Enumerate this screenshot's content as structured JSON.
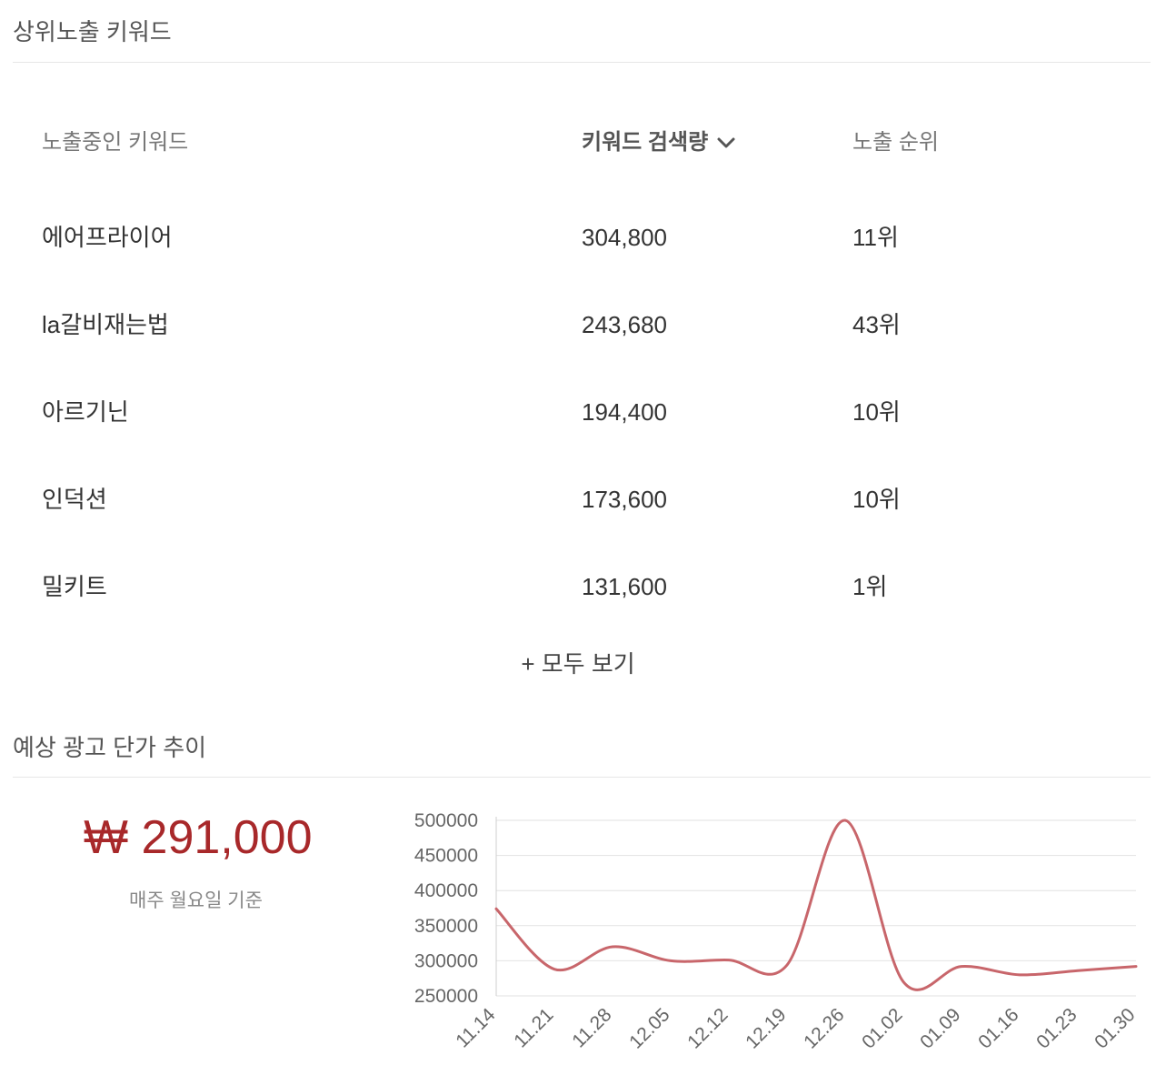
{
  "top_keywords": {
    "title": "상위노출 키워드",
    "columns": {
      "keyword": "노출중인 키워드",
      "volume": "키워드 검색량",
      "rank": "노출 순위"
    },
    "rows": [
      {
        "keyword": "에어프라이어",
        "volume": "304,800",
        "rank": "11위"
      },
      {
        "keyword": "la갈비재는법",
        "volume": "243,680",
        "rank": "43위"
      },
      {
        "keyword": "아르기닌",
        "volume": "194,400",
        "rank": "10위"
      },
      {
        "keyword": "인덕션",
        "volume": "173,600",
        "rank": "10위"
      },
      {
        "keyword": "밀키트",
        "volume": "131,600",
        "rank": "1위"
      }
    ],
    "more_label": "+ 모두 보기",
    "sort_icon": "chevron-down-icon"
  },
  "ad_price": {
    "title": "예상 광고 단가 추이",
    "price": "₩ 291,000",
    "note": "매주 월요일 기준",
    "color": "#a8282a"
  },
  "chart_data": {
    "type": "line",
    "x": [
      "11.14",
      "11.21",
      "11.28",
      "12.05",
      "12.12",
      "12.19",
      "12.26",
      "01.02",
      "01.09",
      "01.16",
      "01.23",
      "01.30"
    ],
    "series": [
      {
        "values": [
          374000,
          288000,
          320000,
          300000,
          301000,
          294000,
          500000,
          270000,
          292000,
          280000,
          286000,
          292000
        ]
      }
    ],
    "ylim": [
      250000,
      500000
    ],
    "yticks": [
      500000,
      450000,
      400000,
      350000,
      300000,
      250000
    ],
    "grid": true,
    "line_color": "#c8666b"
  }
}
